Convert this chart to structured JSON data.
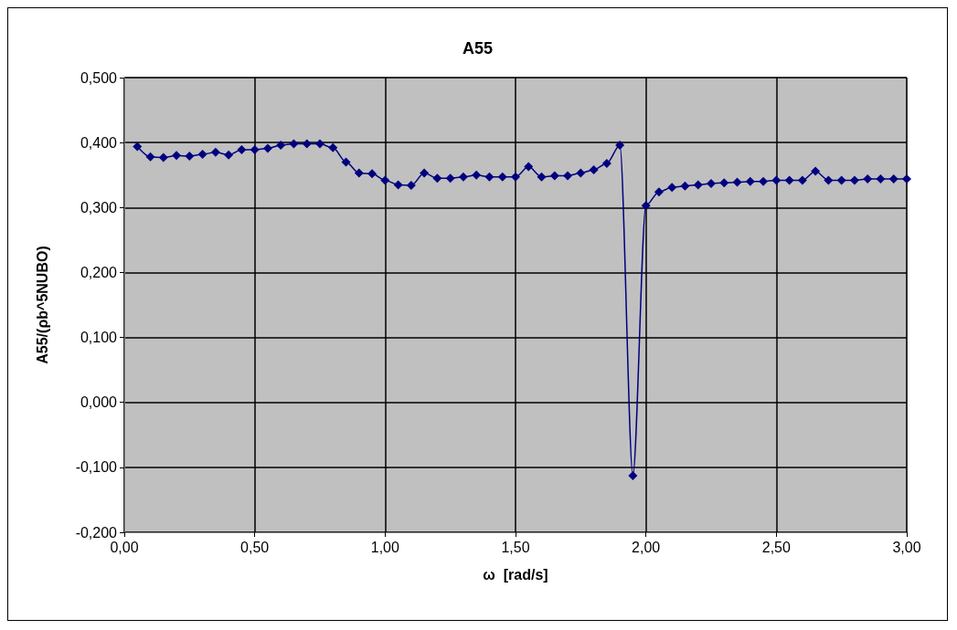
{
  "chart_data": {
    "type": "line",
    "title": "A55",
    "xlabel": "ω  [rad/s]",
    "ylabel": "A55/(ρb^5NUBO)",
    "x": [
      0.05,
      0.1,
      0.15,
      0.2,
      0.25,
      0.3,
      0.35,
      0.4,
      0.45,
      0.5,
      0.55,
      0.6,
      0.65,
      0.7,
      0.75,
      0.8,
      0.85,
      0.9,
      0.95,
      1.0,
      1.05,
      1.1,
      1.15,
      1.2,
      1.25,
      1.3,
      1.35,
      1.4,
      1.45,
      1.5,
      1.55,
      1.6,
      1.65,
      1.7,
      1.75,
      1.8,
      1.85,
      1.9,
      1.95,
      2.0,
      2.05,
      2.1,
      2.15,
      2.2,
      2.25,
      2.3,
      2.35,
      2.4,
      2.45,
      2.5,
      2.55,
      2.6,
      2.65,
      2.7,
      2.75,
      2.8,
      2.85,
      2.9,
      2.95,
      3.0
    ],
    "series": [
      {
        "color": "#000080",
        "values": [
          0.394,
          0.378,
          0.377,
          0.38,
          0.379,
          0.382,
          0.385,
          0.381,
          0.389,
          0.389,
          0.391,
          0.396,
          0.398,
          0.398,
          0.398,
          0.392,
          0.37,
          0.353,
          0.352,
          0.342,
          0.335,
          0.334,
          0.353,
          0.345,
          0.345,
          0.347,
          0.35,
          0.347,
          0.347,
          0.347,
          0.363,
          0.347,
          0.349,
          0.349,
          0.353,
          0.358,
          0.368,
          0.396,
          -0.113,
          0.303,
          0.324,
          0.331,
          0.333,
          0.335,
          0.337,
          0.338,
          0.339,
          0.34,
          0.34,
          0.342,
          0.342,
          0.342,
          0.356,
          0.342,
          0.342,
          0.342,
          0.344,
          0.344,
          0.344,
          0.344
        ]
      }
    ],
    "xlim": [
      0,
      3
    ],
    "xticks": [
      {
        "value": 0,
        "label": "0,00"
      },
      {
        "value": 0.5,
        "label": "0,50"
      },
      {
        "value": 1,
        "label": "1,00"
      },
      {
        "value": 1.5,
        "label": "1,50"
      },
      {
        "value": 2,
        "label": "2,00"
      },
      {
        "value": 2.5,
        "label": "2,50"
      },
      {
        "value": 3,
        "label": "3,00"
      }
    ],
    "ylim": [
      -0.2,
      0.5
    ],
    "yticks": [
      {
        "value": -0.2,
        "label": "-0,200"
      },
      {
        "value": -0.1,
        "label": "-0,100"
      },
      {
        "value": 0,
        "label": "0,000"
      },
      {
        "value": 0.1,
        "label": "0,100"
      },
      {
        "value": 0.2,
        "label": "0,200"
      },
      {
        "value": 0.3,
        "label": "0,300"
      },
      {
        "value": 0.4,
        "label": "0,400"
      },
      {
        "value": 0.5,
        "label": "0,500"
      }
    ],
    "grid": true,
    "marker": "diamond",
    "line_style": "solid"
  }
}
